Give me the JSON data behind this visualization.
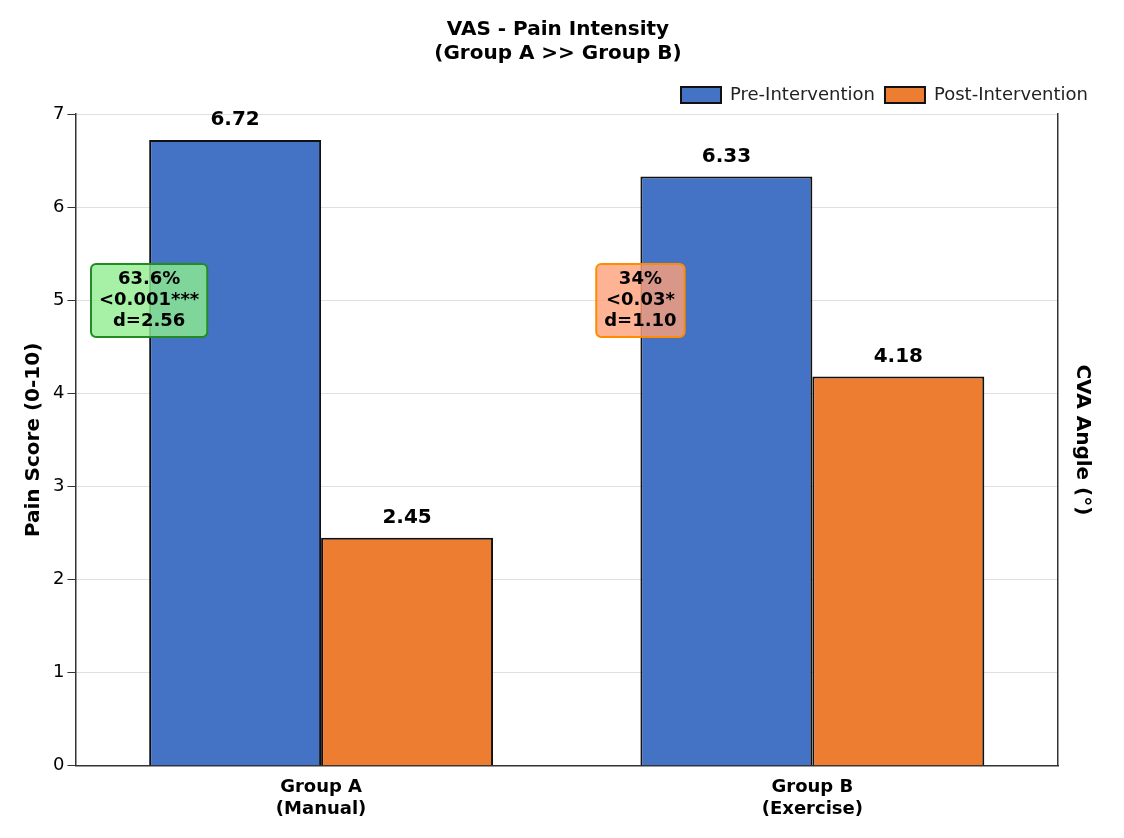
{
  "chart_data": {
    "type": "bar",
    "title": "VAS - Pain Intensity\n(Group A >> Group B)",
    "ylabel": "Pain Score (0-10)",
    "y2label": "CVA Angle (°)",
    "categories": [
      "Group A\n(Manual)",
      "Group B\n(Exercise)"
    ],
    "series": [
      {
        "name": "Pre-Intervention",
        "color": "#4472c4",
        "values": [
          6.72,
          6.33
        ]
      },
      {
        "name": "Post-Intervention",
        "color": "#ed7d31",
        "values": [
          2.45,
          4.18
        ]
      }
    ],
    "ylim": [
      0,
      7
    ],
    "yticks": [
      0,
      1,
      2,
      3,
      4,
      5,
      6,
      7
    ],
    "grid": "y",
    "legend": "top",
    "data_labels": true,
    "annotations": [
      "63.6%\n<0.001***\nd=2.56",
      "34%\n<0.03*\nd=1.10"
    ]
  }
}
